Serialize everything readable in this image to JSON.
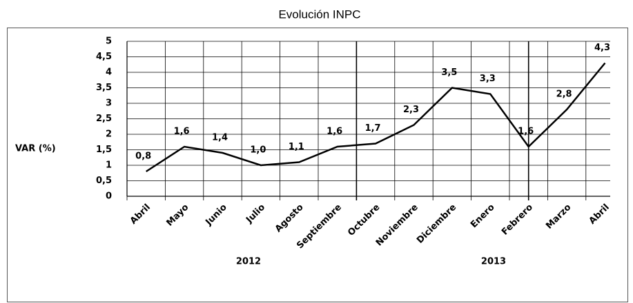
{
  "chart_data": {
    "type": "line",
    "title": "Evolución INPC",
    "y_label": "VAR (%)",
    "categories": [
      "Abril",
      "Mayo",
      "Junio",
      "Julio",
      "Agosto",
      "Septiembre",
      "Octubre",
      "Noviembre",
      "Diciembre",
      "Enero",
      "Febrero",
      "Marzo",
      "Abril"
    ],
    "series": [
      {
        "name": "INPC",
        "color": "#000000",
        "values": [
          0.8,
          1.6,
          1.4,
          1.0,
          1.1,
          1.6,
          1.7,
          2.3,
          3.5,
          3.3,
          1.6,
          2.8,
          4.3
        ],
        "value_labels": [
          "0,8",
          "1,6",
          "1,4",
          "1,0",
          "1,1",
          "1,6",
          "1,7",
          "2,3",
          "3,5",
          "3,3",
          "1,6",
          "2,8",
          "4,3"
        ]
      }
    ],
    "annotations": [
      "2012",
      "2013"
    ],
    "ylim": [
      0,
      5
    ],
    "yticks": [
      0,
      {
        "value": 0.5,
        "label": "0,5"
      },
      1,
      {
        "value": 1.5,
        "label": "1,5"
      },
      2,
      {
        "value": 2.5,
        "label": "2,5"
      },
      3,
      {
        "value": 3.5,
        "label": "3,5"
      },
      4,
      {
        "value": 4.5,
        "label": "4,5"
      },
      5
    ],
    "grid": true
  }
}
